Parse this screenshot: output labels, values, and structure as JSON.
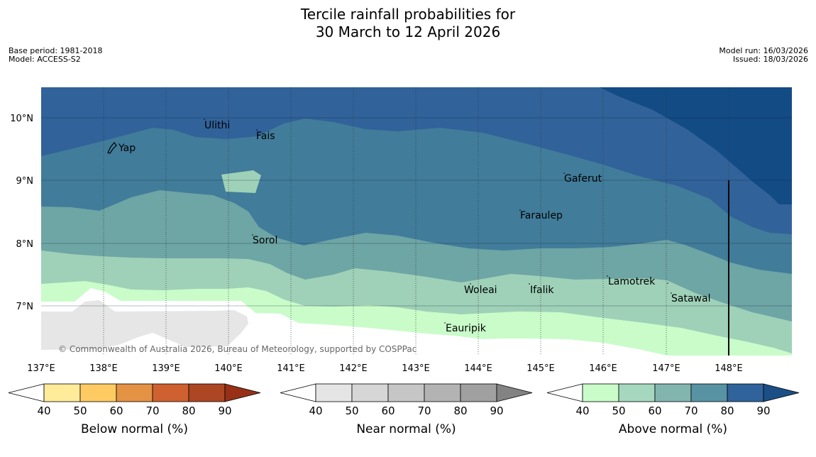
{
  "header": {
    "title_line1": "Tercile rainfall probabilities for",
    "title_line2": "30 March to 12 April 2026",
    "base_period": "Base period: 1981-2018",
    "model": "Model: ACCESS-S2",
    "model_run": "Model run: 16/03/2026",
    "issued": "Issued: 18/03/2026"
  },
  "map": {
    "lon_labels": [
      "137°E",
      "138°E",
      "139°E",
      "140°E",
      "141°E",
      "142°E",
      "143°E",
      "144°E",
      "145°E",
      "146°E",
      "147°E",
      "148°E"
    ],
    "lat_labels": [
      "10°N",
      "9°N",
      "8°N",
      "7°N"
    ],
    "places": [
      "Ulithi",
      "Fais",
      "Yap",
      "Gaferut",
      "Faraulep",
      "Sorol",
      "Lamotrek",
      "Woleai",
      "Ifalik",
      "Satawal",
      "Eauripik"
    ],
    "copyright": "© Commonwealth of Australia 2026, Bureau of Meteorology, supported by COSPPac",
    "colors": {
      "above_40_50": "#c9fcc9",
      "above_50_60": "#9fd1b8",
      "above_60_70": "#6ea5a5",
      "above_70_80": "#417c9a",
      "above_80_90": "#31629a",
      "above_90": "#134b85",
      "near_normal": "#e6e6e6"
    }
  },
  "colorbars": [
    {
      "title": "Below normal (%)",
      "ticks": [
        "40",
        "50",
        "60",
        "70",
        "80",
        "90"
      ],
      "colors": [
        "#ffeb99",
        "#fecb62",
        "#e49244",
        "#cf6130",
        "#ad4623",
        "#973016"
      ]
    },
    {
      "title": "Near normal (%)",
      "ticks": [
        "40",
        "50",
        "60",
        "70",
        "80",
        "90"
      ],
      "colors": [
        "#e5e5e5",
        "#d6d6d6",
        "#c6c6c6",
        "#b3b3b3",
        "#a0a0a0",
        "#838383"
      ]
    },
    {
      "title": "Above normal (%)",
      "ticks": [
        "40",
        "50",
        "60",
        "70",
        "80",
        "90"
      ],
      "colors": [
        "#c9fcc9",
        "#a5d8be",
        "#82b5ae",
        "#5893a3",
        "#30639b",
        "#1b4f86"
      ]
    }
  ]
}
